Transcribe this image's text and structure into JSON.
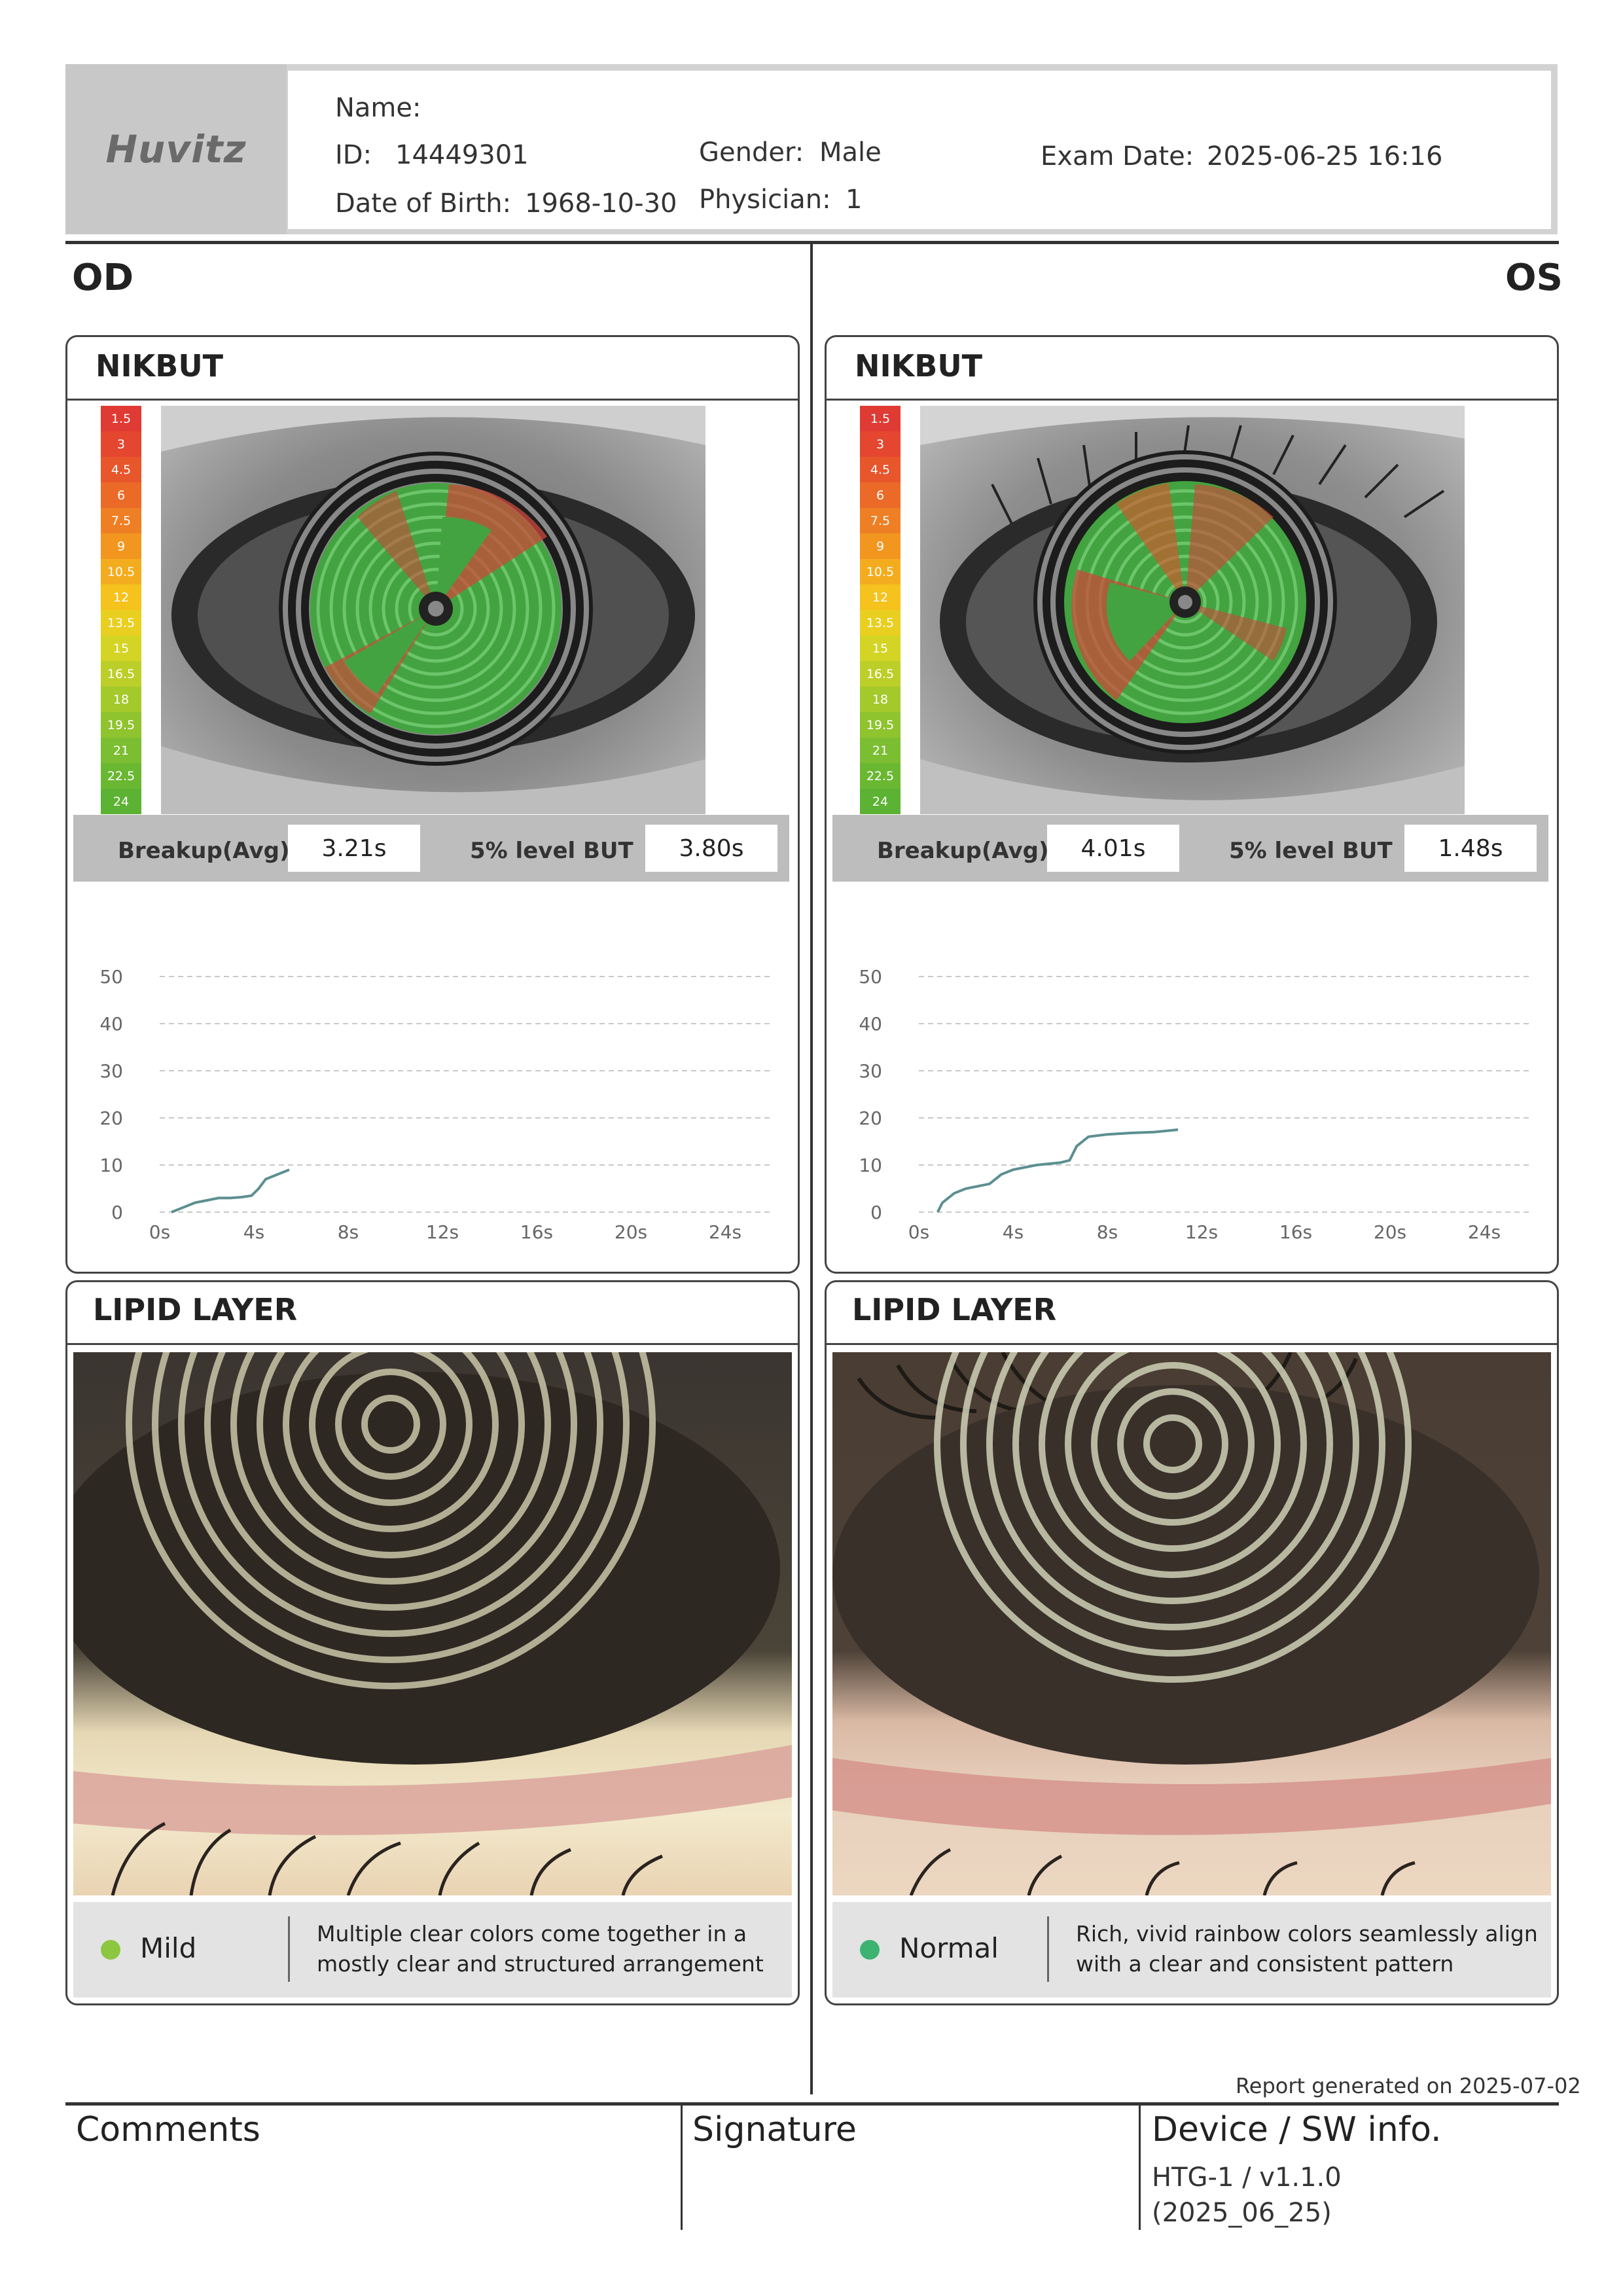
{
  "header": {
    "logo": "Huvitz",
    "name_label": "Name:",
    "name_value": "",
    "id_label": "ID:",
    "id_value": "14449301",
    "dob_label": "Date of Birth:",
    "dob_value": "1968-10-30",
    "gender_label": "Gender:",
    "gender_value": "Male",
    "physician_label": "Physician:",
    "physician_value": "1",
    "exam_label": "Exam Date:",
    "exam_value": "2025-06-25 16:16"
  },
  "od": {
    "label": "OD",
    "nikbut": {
      "title": "NIKBUT",
      "breakup_label": "Breakup(Avg)",
      "breakup_value": "3.21s",
      "level_label": "5% level BUT",
      "level_value": "3.80s",
      "scale": [
        "1.5",
        "3",
        "4.5",
        "6",
        "7.5",
        "9",
        "10.5",
        "12",
        "13.5",
        "15",
        "16.5",
        "18",
        "19.5",
        "21",
        "22.5",
        "24"
      ]
    },
    "lipid": {
      "title": "LIPID LAYER",
      "grade": "Mild",
      "grade_color": "#8dc63f",
      "desc_line1": "Multiple clear colors come together in a",
      "desc_line2": "mostly clear and structured arrangement"
    }
  },
  "os": {
    "label": "OS",
    "nikbut": {
      "title": "NIKBUT",
      "breakup_label": "Breakup(Avg)",
      "breakup_value": "4.01s",
      "level_label": "5% level BUT",
      "level_value": "1.48s",
      "scale": [
        "1.5",
        "3",
        "4.5",
        "6",
        "7.5",
        "9",
        "10.5",
        "12",
        "13.5",
        "15",
        "16.5",
        "18",
        "19.5",
        "21",
        "22.5",
        "24"
      ]
    },
    "lipid": {
      "title": "LIPID LAYER",
      "grade": "Normal",
      "grade_color": "#3cb371",
      "desc_line1": "Rich, vivid rainbow colors seamlessly align",
      "desc_line2": "with a clear and consistent pattern"
    }
  },
  "chart_data": [
    {
      "type": "line",
      "x_ticks": [
        "0s",
        "4s",
        "8s",
        "12s",
        "16s",
        "20s",
        "24s"
      ],
      "y_ticks": [
        "0",
        "10",
        "20",
        "30",
        "40",
        "50"
      ],
      "xlim": [
        0,
        26
      ],
      "ylim": [
        0,
        50
      ],
      "grid": true,
      "series": [
        {
          "x": [
            0.5,
            1.0,
            1.5,
            2.0,
            2.5,
            3.0,
            3.5,
            3.9,
            4.2,
            4.5,
            5.0,
            5.5
          ],
          "y": [
            0,
            1,
            2,
            2.5,
            3,
            3,
            3.2,
            3.5,
            5,
            7,
            8,
            9
          ]
        }
      ]
    },
    {
      "type": "line",
      "x_ticks": [
        "0s",
        "4s",
        "8s",
        "12s",
        "16s",
        "20s",
        "24s"
      ],
      "y_ticks": [
        "0",
        "10",
        "20",
        "30",
        "40",
        "50"
      ],
      "xlim": [
        0,
        26
      ],
      "ylim": [
        0,
        50
      ],
      "grid": true,
      "series": [
        {
          "x": [
            0.8,
            1.0,
            1.5,
            2.0,
            2.5,
            3.0,
            3.5,
            4.0,
            5.0,
            6.0,
            6.4,
            6.7,
            7.2,
            8.0,
            9.0,
            10.0,
            11.0
          ],
          "y": [
            0,
            2,
            4,
            5,
            5.5,
            6,
            8,
            9,
            10,
            10.5,
            11,
            14,
            16,
            16.5,
            16.8,
            17,
            17.5
          ]
        }
      ]
    }
  ],
  "footer": {
    "generated": "Report generated on 2025-07-02",
    "comments_label": "Comments",
    "signature_label": "Signature",
    "device_label": "Device / SW info.",
    "device_line1": "HTG-1 / v1.1.0",
    "device_line2": "(2025_06_25)"
  },
  "colors": {
    "scale": [
      "#e03a34",
      "#e44630",
      "#e8562c",
      "#ec6a28",
      "#ef7f24",
      "#f29620",
      "#f4ac1f",
      "#f5c21e",
      "#e9cf20",
      "#d4d424",
      "#bccf28",
      "#a4c92b",
      "#8fc42e",
      "#7bbe31",
      "#6ab832",
      "#5cb233"
    ]
  }
}
